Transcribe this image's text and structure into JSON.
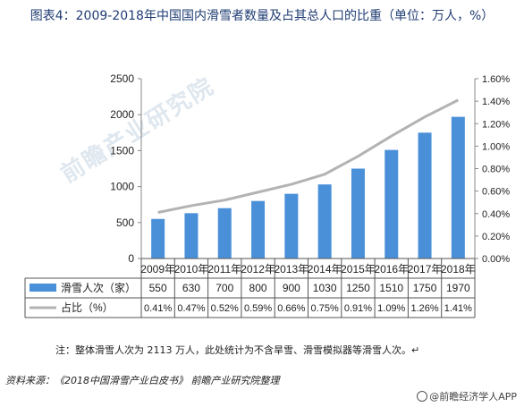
{
  "title": "图表4：2009-2018年中国国内滑雪者数量及占其总人口的比重（单位：万人，%）",
  "note": "注：整体滑雪人次为 2113 万人，此处统计为不含旱雪、滑雪模拟器等滑雪人次。↵",
  "source": "资料来源：《2018中国滑雪产业白皮书》  前瞻产业研究院整理",
  "brand": "@前瞻经济学人APP",
  "watermark": "前瞻产业研究院",
  "chart_data": {
    "type": "bar",
    "categories": [
      "2009年",
      "2010年",
      "2011年",
      "2012年",
      "2013年",
      "2014年",
      "2015年",
      "2016年",
      "2017年",
      "2018年"
    ],
    "series": [
      {
        "name": "滑雪人次（家）",
        "type": "bar",
        "axis": "left",
        "color": "#4a90d9",
        "values": [
          550,
          630,
          700,
          800,
          900,
          1030,
          1250,
          1510,
          1750,
          1970
        ],
        "labels": [
          "550",
          "630",
          "700",
          "800",
          "900",
          "1030",
          "1250",
          "1510",
          "1750",
          "1970"
        ]
      },
      {
        "name": "占比（%）",
        "type": "line",
        "axis": "right",
        "color": "#b3b3b3",
        "values": [
          0.41,
          0.47,
          0.52,
          0.59,
          0.66,
          0.75,
          0.91,
          1.09,
          1.26,
          1.41
        ],
        "labels": [
          "0.41%",
          "0.47%",
          "0.52%",
          "0.59%",
          "0.66%",
          "0.75%",
          "0.91%",
          "1.09%",
          "1.26%",
          "1.41%"
        ]
      }
    ],
    "y_left": {
      "lim": [
        0,
        2500
      ],
      "ticks": [
        "0",
        "500",
        "1000",
        "1500",
        "2000",
        "2500"
      ],
      "tick_values": [
        0,
        500,
        1000,
        1500,
        2000,
        2500
      ]
    },
    "y_right": {
      "lim": [
        0,
        1.6
      ],
      "ticks": [
        "0.00%",
        "0.20%",
        "0.40%",
        "0.60%",
        "0.80%",
        "1.00%",
        "1.20%",
        "1.40%",
        "1.60%"
      ],
      "tick_values": [
        0,
        0.2,
        0.4,
        0.6,
        0.8,
        1.0,
        1.2,
        1.4,
        1.6
      ]
    },
    "grid": false,
    "legend": "data-table"
  }
}
